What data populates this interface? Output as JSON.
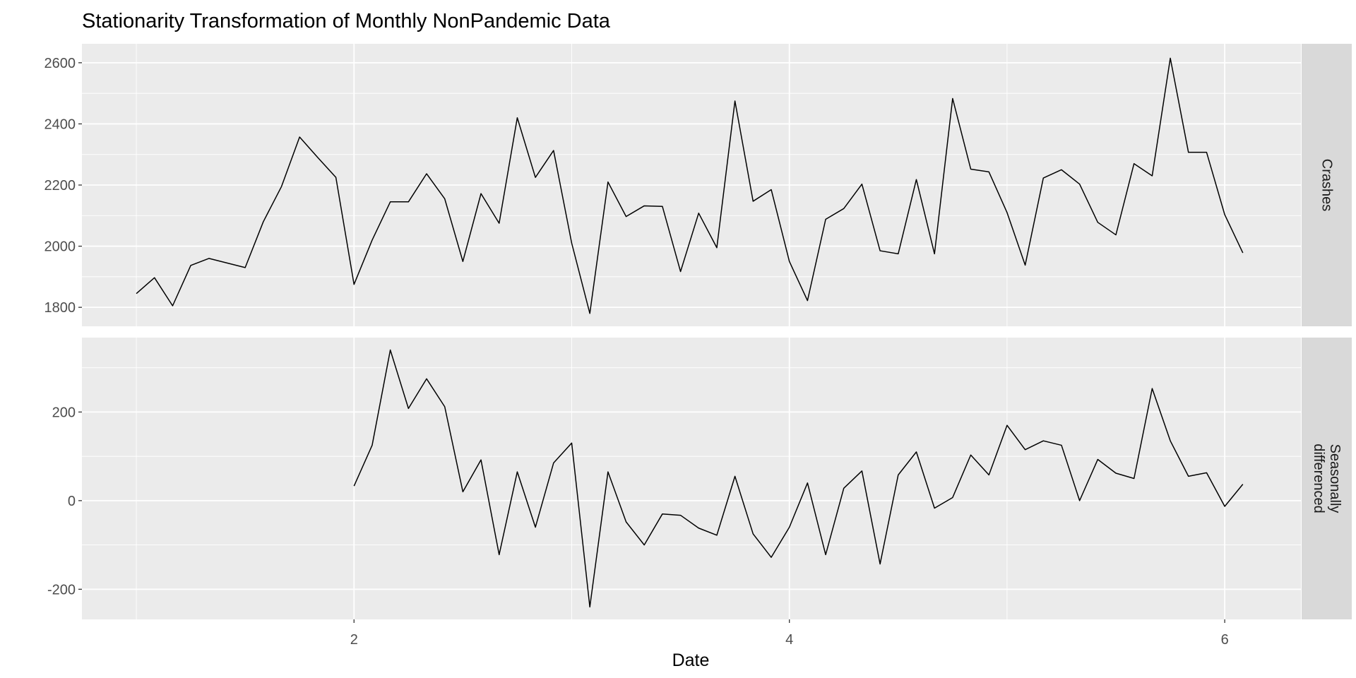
{
  "chart_data": {
    "type": "line",
    "title": "Stationarity Transformation of Monthly NonPandemic Data",
    "xlabel": "Date",
    "ylabel": "",
    "grid": true,
    "legend": "none",
    "x": [
      1,
      1.0833,
      1.1667,
      1.25,
      1.3333,
      1.4167,
      1.5,
      1.5833,
      1.6667,
      1.75,
      1.8333,
      1.9167,
      2,
      2.0833,
      2.1667,
      2.25,
      2.3333,
      2.4167,
      2.5,
      2.5833,
      2.6667,
      2.75,
      2.8333,
      2.9167,
      3,
      3.0833,
      3.1667,
      3.25,
      3.3333,
      3.4167,
      3.5,
      3.5833,
      3.6667,
      3.75,
      3.8333,
      3.9167,
      4,
      4.0833,
      4.1667,
      4.25,
      4.3333,
      4.4167,
      4.5,
      4.5833,
      4.6667,
      4.75,
      4.8333,
      4.9167,
      5,
      5.0833,
      5.1667,
      5.25,
      5.3333,
      5.4167,
      5.5,
      5.5833,
      5.6667,
      5.75,
      5.8333,
      5.9167,
      6,
      6.0833
    ],
    "xlim": [
      0.75,
      6.35
    ],
    "xticks": [
      2,
      4,
      6
    ],
    "xtick_labels": [
      "2",
      "4",
      "6"
    ],
    "panels": [
      {
        "name": "Crashes",
        "strip_lines": [
          "Crashes"
        ],
        "ylim": [
          1738,
          2662
        ],
        "yticks": [
          1800,
          2000,
          2200,
          2400,
          2600
        ],
        "ytick_labels": [
          "1800",
          "2000",
          "2200",
          "2400",
          "2600"
        ],
        "values": [
          1845,
          1897,
          1805,
          1937,
          1960,
          1945,
          1930,
          2080,
          2195,
          2357,
          2290,
          2225,
          1875,
          2020,
          2145,
          2145,
          2237,
          2155,
          1950,
          2172,
          2075,
          2420,
          2225,
          2313,
          2010,
          1780,
          2210,
          2097,
          2132,
          2130,
          1917,
          2108,
          1995,
          2475,
          2147,
          2185,
          1950,
          1822,
          2088,
          2123,
          2203,
          1985,
          1975,
          2218,
          1975,
          2483,
          2252,
          2243,
          2110,
          1938,
          2223,
          2250,
          2203,
          2078,
          2037,
          2270,
          2230,
          2615,
          2307,
          2307,
          2103,
          1978
        ]
      },
      {
        "name": "Seasonally differenced",
        "strip_lines": [
          "Seasonally",
          "differenced"
        ],
        "ylim": [
          -268,
          368
        ],
        "yticks": [
          -200,
          0,
          200
        ],
        "ytick_labels": [
          "-200",
          "0",
          "200"
        ],
        "values": [
          null,
          null,
          null,
          null,
          null,
          null,
          null,
          null,
          null,
          null,
          null,
          null,
          33,
          125,
          340,
          208,
          275,
          212,
          20,
          92,
          -122,
          65,
          -60,
          85,
          130,
          -240,
          65,
          -48,
          -100,
          -30,
          -33,
          -62,
          -78,
          55,
          -75,
          -128,
          -60,
          40,
          -122,
          28,
          67,
          -143,
          58,
          110,
          -17,
          7,
          103,
          58,
          170,
          115,
          135,
          125,
          0,
          93,
          62,
          50,
          253,
          135,
          55,
          63,
          -13,
          37
        ]
      }
    ]
  }
}
